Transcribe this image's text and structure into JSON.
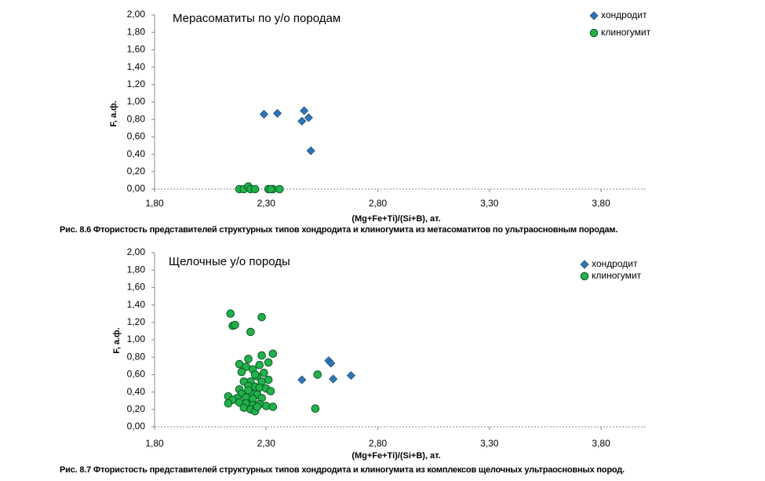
{
  "captions": {
    "fig1": "Рис. 8.6 Фтористость представителей структурных типов хондродита и клиногумита из метасоматитов по ультраосновным породам.",
    "fig2": "Рис. 8.7 Фтористость представителей структурных типов хондродита и клиногумита из комплексов щелочных ультраосновных пород."
  },
  "chart_data": [
    {
      "type": "scatter",
      "title": "Мерасоматиты по у/о породам",
      "xlabel": "(Mg+Fe+Ti)/(Si+B), ат.",
      "ylabel": "F, а.ф.",
      "xlim": [
        1.8,
        4.0
      ],
      "ylim": [
        0,
        2.0
      ],
      "x_ticks": [
        "1,80",
        "2,30",
        "2,80",
        "3,30",
        "3,80"
      ],
      "y_ticks": [
        "0,00",
        "0,20",
        "0,40",
        "0,60",
        "0,80",
        "1,00",
        "1,20",
        "1,40",
        "1,60",
        "1,80",
        "2,00"
      ],
      "grid": false,
      "legend_position": "top-right",
      "series": [
        {
          "name": "хондродит",
          "marker": "diamond",
          "color": "#2e75b6",
          "points": [
            [
              2.29,
              0.86
            ],
            [
              2.35,
              0.87
            ],
            [
              2.46,
              0.78
            ],
            [
              2.47,
              0.9
            ],
            [
              2.49,
              0.82
            ],
            [
              2.5,
              0.44
            ]
          ]
        },
        {
          "name": "клиногумит",
          "marker": "circle",
          "color": "#22b14c",
          "points": [
            [
              2.18,
              0.0
            ],
            [
              2.2,
              0.0
            ],
            [
              2.22,
              0.03
            ],
            [
              2.23,
              0.0
            ],
            [
              2.25,
              0.0
            ],
            [
              2.31,
              0.0
            ],
            [
              2.33,
              0.0
            ],
            [
              2.32,
              0.0
            ],
            [
              2.36,
              0.0
            ]
          ]
        }
      ]
    },
    {
      "type": "scatter",
      "title": "Щелочные у/о породы",
      "xlabel": "(Mg+Fe+Ti)/(Si+B), ат.",
      "ylabel": "F, а.ф.",
      "xlim": [
        1.8,
        4.0
      ],
      "ylim": [
        0,
        2.0
      ],
      "x_ticks": [
        "1,80",
        "2,30",
        "2,80",
        "3,30",
        "3,80"
      ],
      "y_ticks": [
        "0,00",
        "0,20",
        "0,40",
        "0,60",
        "0,80",
        "1,00",
        "1,20",
        "1,40",
        "1,60",
        "1,80",
        "2,00"
      ],
      "grid": false,
      "legend_position": "top-right",
      "series": [
        {
          "name": "хондродит",
          "marker": "diamond",
          "color": "#2e75b6",
          "points": [
            [
              2.46,
              0.54
            ],
            [
              2.58,
              0.76
            ],
            [
              2.59,
              0.73
            ],
            [
              2.6,
              0.55
            ],
            [
              2.68,
              0.59
            ]
          ]
        },
        {
          "name": "клиногумит",
          "marker": "circle",
          "color": "#22b14c",
          "points": [
            [
              2.14,
              1.3
            ],
            [
              2.15,
              1.16
            ],
            [
              2.16,
              1.17
            ],
            [
              2.23,
              1.09
            ],
            [
              2.28,
              1.26
            ],
            [
              2.33,
              0.84
            ],
            [
              2.27,
              0.71
            ],
            [
              2.28,
              0.82
            ],
            [
              2.31,
              0.74
            ],
            [
              2.22,
              0.78
            ],
            [
              2.18,
              0.72
            ],
            [
              2.21,
              0.69
            ],
            [
              2.24,
              0.66
            ],
            [
              2.19,
              0.63
            ],
            [
              2.26,
              0.58
            ],
            [
              2.23,
              0.52
            ],
            [
              2.2,
              0.52
            ],
            [
              2.28,
              0.52
            ],
            [
              2.31,
              0.54
            ],
            [
              2.25,
              0.46
            ],
            [
              2.22,
              0.47
            ],
            [
              2.18,
              0.43
            ],
            [
              2.27,
              0.45
            ],
            [
              2.3,
              0.44
            ],
            [
              2.32,
              0.41
            ],
            [
              2.19,
              0.38
            ],
            [
              2.23,
              0.39
            ],
            [
              2.26,
              0.37
            ],
            [
              2.17,
              0.33
            ],
            [
              2.21,
              0.34
            ],
            [
              2.24,
              0.32
            ],
            [
              2.28,
              0.33
            ],
            [
              2.13,
              0.35
            ],
            [
              2.15,
              0.31
            ],
            [
              2.13,
              0.27
            ],
            [
              2.18,
              0.28
            ],
            [
              2.21,
              0.27
            ],
            [
              2.24,
              0.25
            ],
            [
              2.27,
              0.26
            ],
            [
              2.3,
              0.24
            ],
            [
              2.33,
              0.23
            ],
            [
              2.2,
              0.22
            ],
            [
              2.23,
              0.2
            ],
            [
              2.25,
              0.18
            ],
            [
              2.26,
              0.23
            ],
            [
              2.22,
              0.42
            ],
            [
              2.25,
              0.6
            ],
            [
              2.29,
              0.62
            ],
            [
              2.53,
              0.6
            ],
            [
              2.52,
              0.21
            ]
          ]
        }
      ]
    }
  ]
}
